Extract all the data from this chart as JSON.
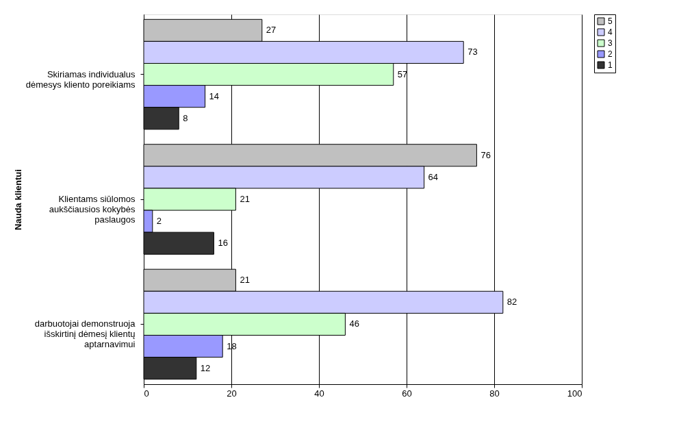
{
  "chart_data": {
    "type": "bar",
    "orientation": "horizontal",
    "ylabel": "Nauda klientui",
    "categories": [
      "Skiriamas individualus dėmesys kliento poreikiams",
      "Klientams siūlomos aukščiausios kokybės paslaugos",
      "darbuotojai demonstruoja išskirtinį dėmesį klientų aptarnavimui"
    ],
    "series": [
      {
        "name": "5",
        "color": "#c0c0c0",
        "values": [
          27,
          76,
          21
        ]
      },
      {
        "name": "4",
        "color": "#ccccff",
        "values": [
          73,
          64,
          82
        ]
      },
      {
        "name": "3",
        "color": "#ccffcc",
        "values": [
          57,
          21,
          46
        ]
      },
      {
        "name": "2",
        "color": "#9999ff",
        "values": [
          14,
          2,
          18
        ]
      },
      {
        "name": "1",
        "color": "#333333",
        "values": [
          8,
          16,
          12
        ]
      }
    ],
    "xlim": [
      0,
      100
    ],
    "xticks": [
      0,
      20,
      40,
      60,
      80,
      100
    ],
    "grid": "x",
    "legend": "right",
    "data_labels": true
  }
}
